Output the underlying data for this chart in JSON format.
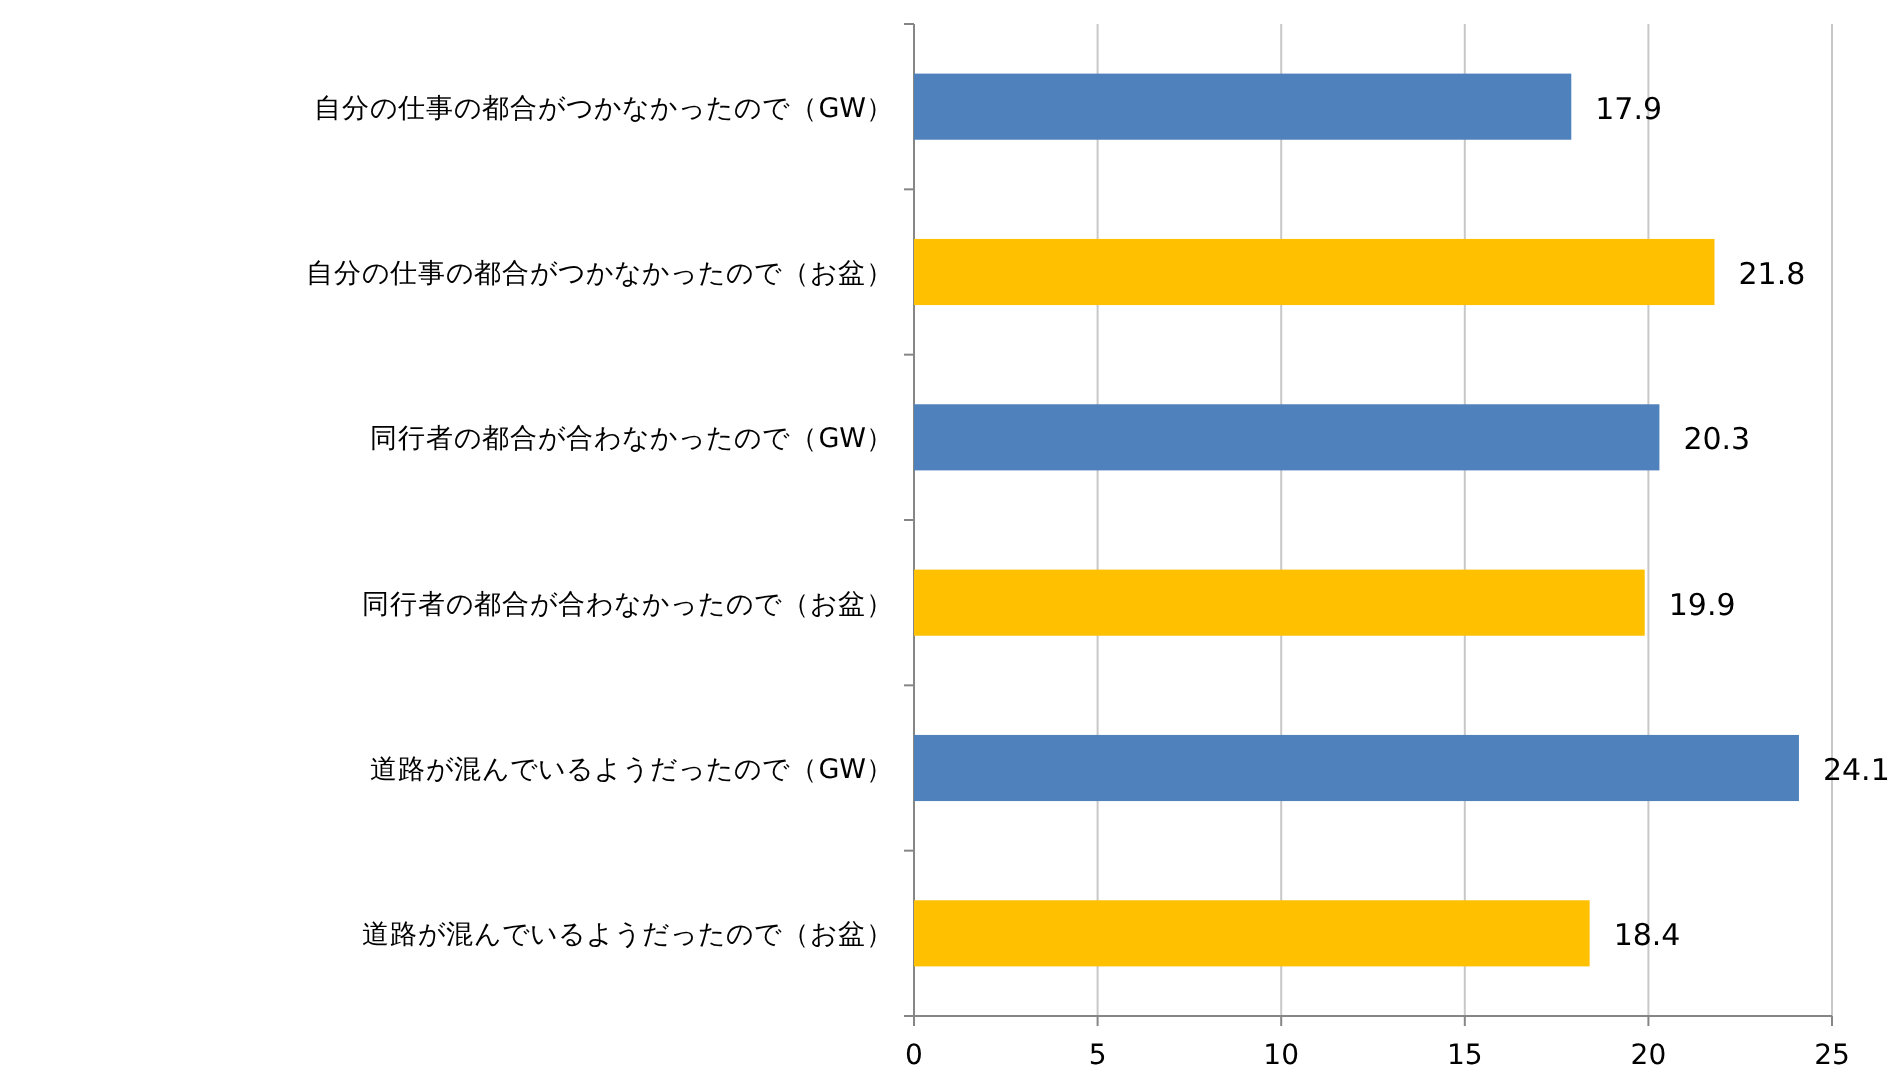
{
  "chart_data": {
    "type": "bar",
    "orientation": "horizontal",
    "categories": [
      "自分の仕事の都合がつかなかったので（GW）",
      "自分の仕事の都合がつかなかったので（お盆）",
      "同行者の都合が合わなかったので（GW）",
      "同行者の都合が合わなかったので（お盆）",
      "道路が混んでいるようだったので（GW）",
      "道路が混んでいるようだったので（お盆）"
    ],
    "values": [
      17.9,
      21.8,
      20.3,
      19.9,
      24.1,
      18.4
    ],
    "colors": [
      "#4f81bd",
      "#ffc000",
      "#4f81bd",
      "#ffc000",
      "#4f81bd",
      "#ffc000"
    ],
    "xlim": [
      0,
      25
    ],
    "xticks": [
      0,
      5,
      10,
      15,
      20,
      25
    ],
    "grid": "x",
    "data_labels": true
  }
}
